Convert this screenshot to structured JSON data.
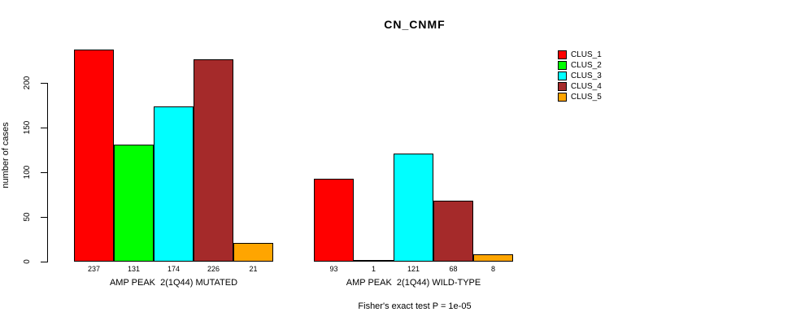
{
  "title": "CN_CNMF",
  "y_axis": {
    "label": "number of cases",
    "ticks": [
      0,
      50,
      100,
      150,
      200
    ]
  },
  "legend": [
    {
      "label": "CLUS_1",
      "color": "#FF0000"
    },
    {
      "label": "CLUS_2",
      "color": "#00FF00"
    },
    {
      "label": "CLUS_3",
      "color": "#00FFFF"
    },
    {
      "label": "CLUS_4",
      "color": "#A52A2A"
    },
    {
      "label": "CLUS_5",
      "color": "#FFA500"
    }
  ],
  "footnote": "Fisher's exact test P = 1e-05",
  "chart_data": {
    "type": "bar",
    "title": "CN_CNMF",
    "xlabel": "",
    "ylabel": "number of cases",
    "ylim": [
      0,
      240
    ],
    "yticks": [
      0,
      50,
      100,
      150,
      200
    ],
    "grid": false,
    "legend_position": "right",
    "bar_value_labels": true,
    "groups": [
      "AMP PEAK  2(1Q44) MUTATED",
      "AMP PEAK  2(1Q44) WILD-TYPE"
    ],
    "series": [
      {
        "name": "CLUS_1",
        "color": "#FF0000",
        "values": [
          237,
          93
        ]
      },
      {
        "name": "CLUS_2",
        "color": "#00FF00",
        "values": [
          131,
          1
        ]
      },
      {
        "name": "CLUS_3",
        "color": "#00FFFF",
        "values": [
          174,
          121
        ]
      },
      {
        "name": "CLUS_4",
        "color": "#A52A2A",
        "values": [
          226,
          68
        ]
      },
      {
        "name": "CLUS_5",
        "color": "#FFA500",
        "values": [
          21,
          8
        ]
      }
    ],
    "annotation": "Fisher's exact test P = 1e-05"
  }
}
